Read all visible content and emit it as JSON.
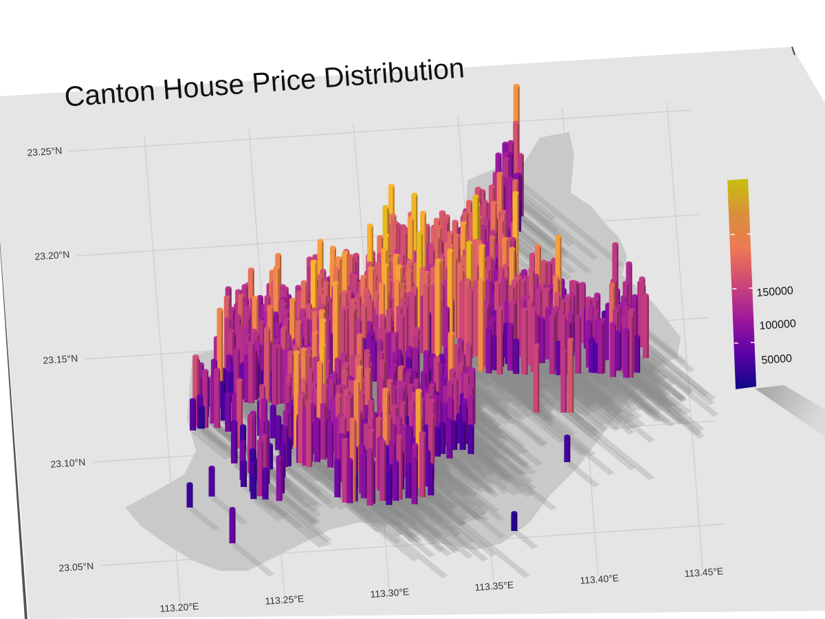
{
  "chart_data": {
    "type": "map-3d-bars",
    "title": "Canton House Price Distribution",
    "x_axis": {
      "ticks": [
        "113.20°E",
        "113.25°E",
        "113.30°E",
        "113.35°E",
        "113.40°E",
        "113.45°E"
      ]
    },
    "y_axis": {
      "ticks": [
        "23.25°N",
        "23.20°N",
        "23.15°N",
        "23.10°N",
        "23.05°N"
      ]
    },
    "legend": {
      "ticks": [
        "150000",
        "100000",
        "50000"
      ],
      "tick_values": [
        150000,
        100000,
        50000
      ],
      "range": [
        10000,
        200000
      ],
      "colors": [
        "#0d0887",
        "#5c01a6",
        "#9c179e",
        "#cc4778",
        "#ed7953",
        "#fdb42f",
        "#c8c00c"
      ]
    },
    "colors": {
      "panel": "#e5e5e5",
      "grid": "#cfcfcf",
      "region": "#c8c8c8",
      "shadow": "#8c8c8c"
    }
  }
}
